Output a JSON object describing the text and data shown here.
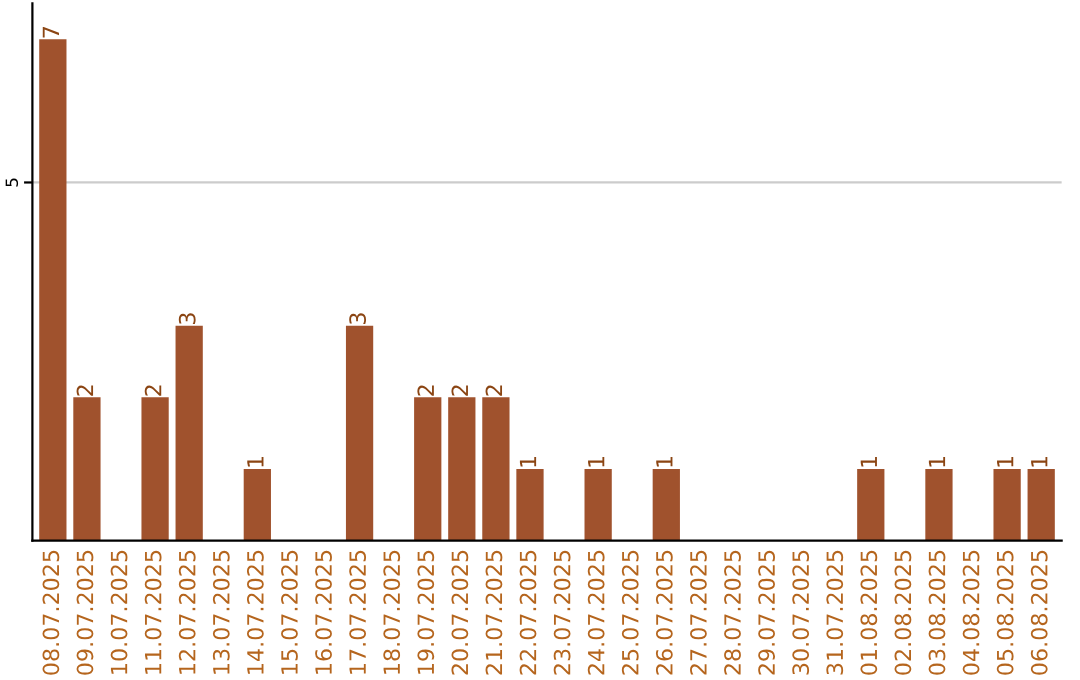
{
  "chart_data": {
    "type": "bar",
    "categories": [
      "08.07.2025",
      "09.07.2025",
      "10.07.2025",
      "11.07.2025",
      "12.07.2025",
      "13.07.2025",
      "14.07.2025",
      "15.07.2025",
      "16.07.2025",
      "17.07.2025",
      "18.07.2025",
      "19.07.2025",
      "20.07.2025",
      "21.07.2025",
      "22.07.2025",
      "23.07.2025",
      "24.07.2025",
      "25.07.2025",
      "26.07.2025",
      "27.07.2025",
      "28.07.2025",
      "29.07.2025",
      "30.07.2025",
      "31.07.2025",
      "01.08.2025",
      "02.08.2025",
      "03.08.2025",
      "04.08.2025",
      "05.08.2025",
      "06.08.2025"
    ],
    "values": [
      7,
      2,
      0,
      2,
      3,
      0,
      1,
      0,
      0,
      3,
      0,
      2,
      2,
      2,
      1,
      0,
      1,
      0,
      1,
      0,
      0,
      0,
      0,
      0,
      1,
      0,
      1,
      0,
      1,
      1
    ],
    "value_labels": [
      "7",
      "2",
      null,
      "2",
      "3",
      null,
      "1",
      null,
      null,
      "3",
      null,
      "2",
      "2",
      "2",
      "1",
      null,
      "1",
      null,
      "1",
      null,
      null,
      null,
      null,
      null,
      "1",
      null,
      "1",
      null,
      "1",
      "1"
    ],
    "color": "#a0522d",
    "ylim": [
      0,
      7.5
    ],
    "yticks": [
      5
    ],
    "grid": "y"
  }
}
